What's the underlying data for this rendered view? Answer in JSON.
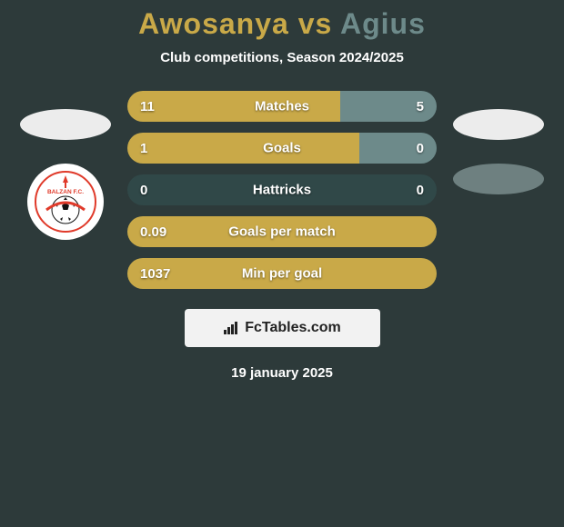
{
  "title_parts": {
    "player1": "Awosanya",
    "vs": "vs",
    "player2": "Agius"
  },
  "title_color1": "#c9a948",
  "title_color_vs": "#c9a948",
  "title_color2": "#6d8a8a",
  "subtitle": "Club competitions, Season 2024/2025",
  "background_color": "#2d3a3a",
  "bar_left_color": "#c9a948",
  "bar_right_color": "#6d8a8a",
  "bar_neutral_color": "#304848",
  "left_badges": [
    {
      "shape": "ellipse",
      "color": "#ececec"
    },
    {
      "shape": "circle",
      "color": "#ffffff",
      "is_club": true
    }
  ],
  "right_badges": [
    {
      "shape": "ellipse",
      "color": "#ececec"
    },
    {
      "shape": "ellipse",
      "color": "#6e8080"
    }
  ],
  "club_logo": {
    "ring_color": "#e03a2a",
    "inner_text": "BALZAN F.C.",
    "text_color": "#e03a2a"
  },
  "stats": [
    {
      "label": "Matches",
      "left_val": "11",
      "right_val": "5",
      "left_pct": 68.75,
      "right_pct": 31.25
    },
    {
      "label": "Goals",
      "left_val": "1",
      "right_val": "0",
      "left_pct": 75,
      "right_pct": 25
    },
    {
      "label": "Hattricks",
      "left_val": "0",
      "right_val": "0",
      "left_pct": 0,
      "right_pct": 0
    },
    {
      "label": "Goals per match",
      "left_val": "0.09",
      "right_val": "",
      "left_pct": 100,
      "right_pct": 0
    },
    {
      "label": "Min per goal",
      "left_val": "1037",
      "right_val": "",
      "left_pct": 100,
      "right_pct": 0
    }
  ],
  "brand": {
    "text": "FcTables.com",
    "box_color": "#f2f2f2",
    "text_color": "#222222",
    "icon_color": "#222222"
  },
  "date": "19 january 2025"
}
